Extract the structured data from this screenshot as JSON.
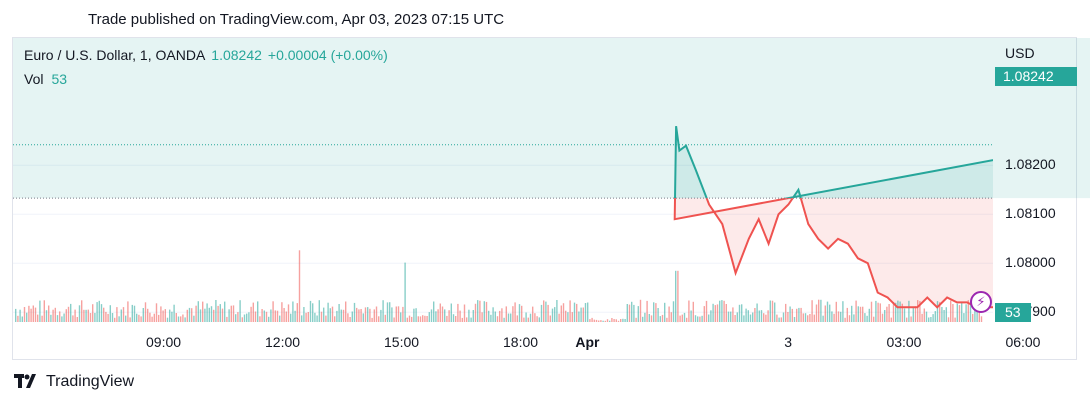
{
  "header": {
    "published": "Trade published on TradingView.com, Apr 03, 2023 07:15 UTC"
  },
  "legend": {
    "symbol": "Euro / U.S. Dollar, 1, OANDA",
    "price": "1.08242",
    "change": "+0.00004 (+0.00%)",
    "vol_label": "Vol",
    "vol_value": "53"
  },
  "axis": {
    "currency": "USD"
  },
  "tags": {
    "last_price": "1.08242",
    "volume": "53"
  },
  "footer": {
    "brand": "TradingView"
  },
  "colors": {
    "up": "#26a69a",
    "down": "#ef5350",
    "event": "#9c27b0"
  },
  "chart_data": {
    "type": "line",
    "title": "",
    "series": [
      {
        "name": "Euro / U.S. Dollar, 1, OANDA",
        "x": [
          "Apr 01 21:05",
          "Apr 02 21:08",
          "Apr 02 21:10",
          "Apr 02 21:15",
          "Apr 02 21:25",
          "Apr 02 21:40",
          "Apr 02 22:00",
          "Apr 02 22:20",
          "Apr 02 22:40",
          "Apr 02 23:00",
          "Apr 02 23:15",
          "Apr 02 23:30",
          "Apr 02 23:45",
          "Apr 03 00:00",
          "Apr 03 00:15",
          "Apr 03 00:30",
          "Apr 03 00:45",
          "Apr 03 01:00",
          "Apr 03 01:15",
          "Apr 03 01:30",
          "Apr 03 01:45",
          "Apr 03 02:00",
          "Apr 03 02:15",
          "Apr 03 02:30",
          "Apr 03 02:45",
          "Apr 03 03:00",
          "Apr 03 03:15",
          "Apr 03 03:30",
          "Apr 03 03:45",
          "Apr 03 04:00",
          "Apr 03 04:15",
          "Apr 03 04:30",
          "Apr 03 04:45",
          "Apr 03 05:00",
          "Apr 03 05:15",
          "Apr 03 05:30",
          "Apr 03 05:45",
          "Apr 03 06:00",
          "Apr 03 06:15",
          "Apr 03 06:30",
          "Apr 03 06:45",
          "Apr 03 07:00",
          "Apr 03 07:05",
          "Apr 03 07:10",
          "Apr 03 07:15"
        ],
        "values": [
          1.0844,
          1.0809,
          1.0828,
          1.0823,
          1.0824,
          1.0819,
          1.0812,
          1.0808,
          1.0798,
          1.0805,
          1.0809,
          1.0804,
          1.081,
          1.0812,
          1.0815,
          1.0808,
          1.0805,
          1.0803,
          1.0805,
          1.0804,
          1.0801,
          1.08,
          1.0794,
          1.0793,
          1.0791,
          1.0791,
          1.0791,
          1.0793,
          1.0791,
          1.0793,
          1.0792,
          1.0792,
          1.0791,
          1.0791,
          1.0791,
          1.0792,
          1.0793,
          1.0805,
          1.0808,
          1.081,
          1.0815,
          1.082,
          1.0825,
          1.082,
          1.08242
        ]
      }
    ],
    "reference_price": 1.08133,
    "ylim": [
      1.0788,
      1.0846
    ],
    "y_ticks": [
      "1.07900",
      "1.08000",
      "1.08100",
      "1.08200"
    ],
    "y_tick_values": [
      1.079,
      1.08,
      1.081,
      1.082
    ],
    "x_ticks": [
      "09:00",
      "12:00",
      "15:00",
      "18:00",
      "Apr",
      "3",
      "03:00",
      "06:00"
    ],
    "volume": {
      "label": "Vol",
      "last": 53,
      "peaks": [
        {
          "x": "Mar 31 12:20",
          "value": 70
        },
        {
          "x": "Mar 31 15:00",
          "value": 58
        },
        {
          "x": "Apr 02 21:10",
          "value": 50
        }
      ]
    },
    "grid": true,
    "legend_position": "top-left"
  }
}
